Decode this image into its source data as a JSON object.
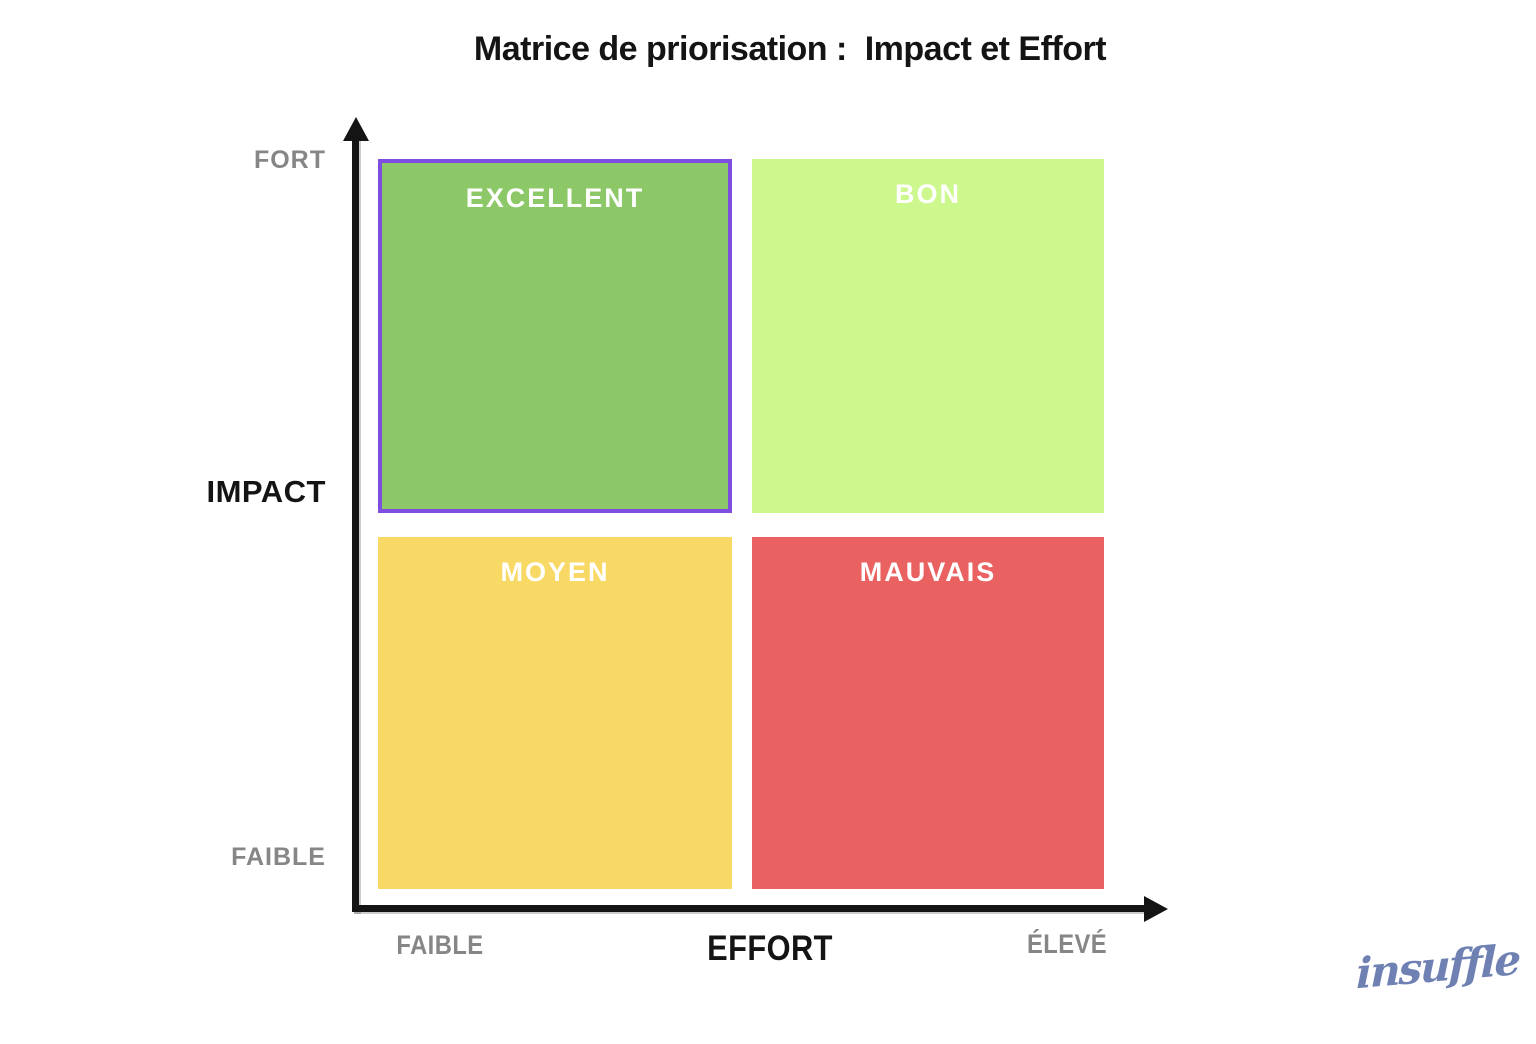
{
  "title": "Matrice de priorisation :  Impact et Effort",
  "chart": {
    "type": "quadrant-matrix",
    "y_axis": {
      "label": "IMPACT",
      "top_tick": "FORT",
      "bottom_tick": "FAIBLE"
    },
    "x_axis": {
      "label": "EFFORT",
      "left_tick": "FAIBLE",
      "right_tick": "ÉLEVÉ"
    },
    "quadrants": [
      {
        "label": "EXCELLENT",
        "position": "top-left",
        "impact": "fort",
        "effort": "faible",
        "color": "#8CC868",
        "border_color": "#7D4EE0",
        "highlighted": true
      },
      {
        "label": "BON",
        "position": "top-right",
        "impact": "fort",
        "effort": "élevé",
        "color": "#CDF88E",
        "highlighted": false
      },
      {
        "label": "MOYEN",
        "position": "bottom-left",
        "impact": "faible",
        "effort": "faible",
        "color": "#F8D966",
        "highlighted": false
      },
      {
        "label": "MAUVAIS",
        "position": "bottom-right",
        "impact": "faible",
        "effort": "élevé",
        "color": "#EA6161",
        "highlighted": false
      }
    ]
  },
  "colors": {
    "axis": "#141414",
    "tick_text": "#868686",
    "quadrant_text": "#ffffff",
    "highlight_border": "#7D4EE0",
    "logo": "#6F80B2"
  },
  "branding": {
    "logo_text": "insuffle"
  }
}
